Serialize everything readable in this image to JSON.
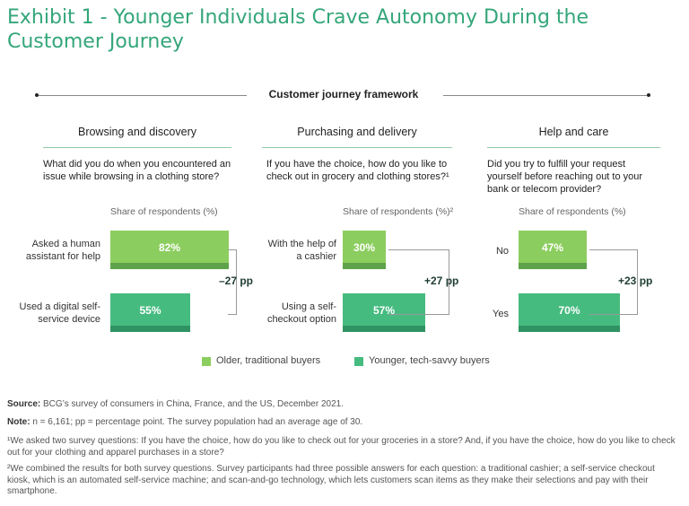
{
  "title": "Exhibit 1 - Younger Individuals Crave Autonomy During the Customer Journey",
  "framework_title": "Customer journey framework",
  "colors": {
    "older": "#8ccd5f",
    "older_dark": "#5ea34a",
    "younger": "#46bb80",
    "younger_dark": "#2f9263",
    "accent": "#34a67a"
  },
  "legend": {
    "older": "Older, traditional buyers",
    "younger": "Younger, tech-savvy buyers"
  },
  "panels": [
    {
      "heading": "Browsing and discovery",
      "question": "What did you do when you encountered an issue while browsing in a clothing store?",
      "share_label": "Share of respondents (%)",
      "diff": "–27 pp",
      "rows": [
        {
          "label": "Asked a human assistant for help",
          "value": 82,
          "value_label": "82%",
          "group": "older"
        },
        {
          "label": "Used a digital self-service device",
          "value": 55,
          "value_label": "55%",
          "group": "younger"
        }
      ]
    },
    {
      "heading": "Purchasing and delivery",
      "question": "If you have the choice, how do you like to check out in grocery and clothing stores?¹",
      "share_label": "Share of respondents (%)²",
      "diff": "+27 pp",
      "rows": [
        {
          "label": "With the help of a cashier",
          "value": 30,
          "value_label": "30%",
          "group": "older"
        },
        {
          "label": "Using a self-checkout option",
          "value": 57,
          "value_label": "57%",
          "group": "younger"
        }
      ]
    },
    {
      "heading": "Help and care",
      "question": "Did you try to fulfill your request yourself before reaching out to your bank or telecom provider?",
      "share_label": "Share of respondents (%)",
      "diff": "+23 pp",
      "rows": [
        {
          "label": "No",
          "value": 47,
          "value_label": "47%",
          "group": "older"
        },
        {
          "label": "Yes",
          "value": 70,
          "value_label": "70%",
          "group": "younger"
        }
      ]
    }
  ],
  "notes": {
    "source_label": "Source:",
    "source": " BCG’s survey of consumers in China, France, and the US, December 2021.",
    "note_label": "Note:",
    "note": " n = 6,161; pp = percentage point. The survey population had an average age of 30.",
    "footnote1": "¹We asked two survey questions: If you have the choice, how do you like to check out for your groceries in a store? And, if you have the choice, how do you like to check out for your clothing and apparel purchases in a store?",
    "footnote2": "²We combined the results for both survey questions. Survey participants had three possible answers for each question: a traditional cashier; a self-service checkout kiosk, which is an automated self-service machine; and scan-and-go technology, which lets customers scan items as they make their selections and pay with their smartphone."
  },
  "chart_data": [
    {
      "type": "bar",
      "title": "Browsing and discovery",
      "categories": [
        "Asked a human assistant for help",
        "Used a digital self-service device"
      ],
      "values": [
        82,
        55
      ],
      "ylabel": "Share of respondents (%)",
      "ylim": [
        0,
        100
      ],
      "annotation": "–27 pp"
    },
    {
      "type": "bar",
      "title": "Purchasing and delivery",
      "categories": [
        "With the help of a cashier",
        "Using a self-checkout option"
      ],
      "values": [
        30,
        57
      ],
      "ylabel": "Share of respondents (%)",
      "ylim": [
        0,
        100
      ],
      "annotation": "+27 pp"
    },
    {
      "type": "bar",
      "title": "Help and care",
      "categories": [
        "No",
        "Yes"
      ],
      "values": [
        47,
        70
      ],
      "ylabel": "Share of respondents (%)",
      "ylim": [
        0,
        100
      ],
      "annotation": "+23 pp"
    }
  ]
}
